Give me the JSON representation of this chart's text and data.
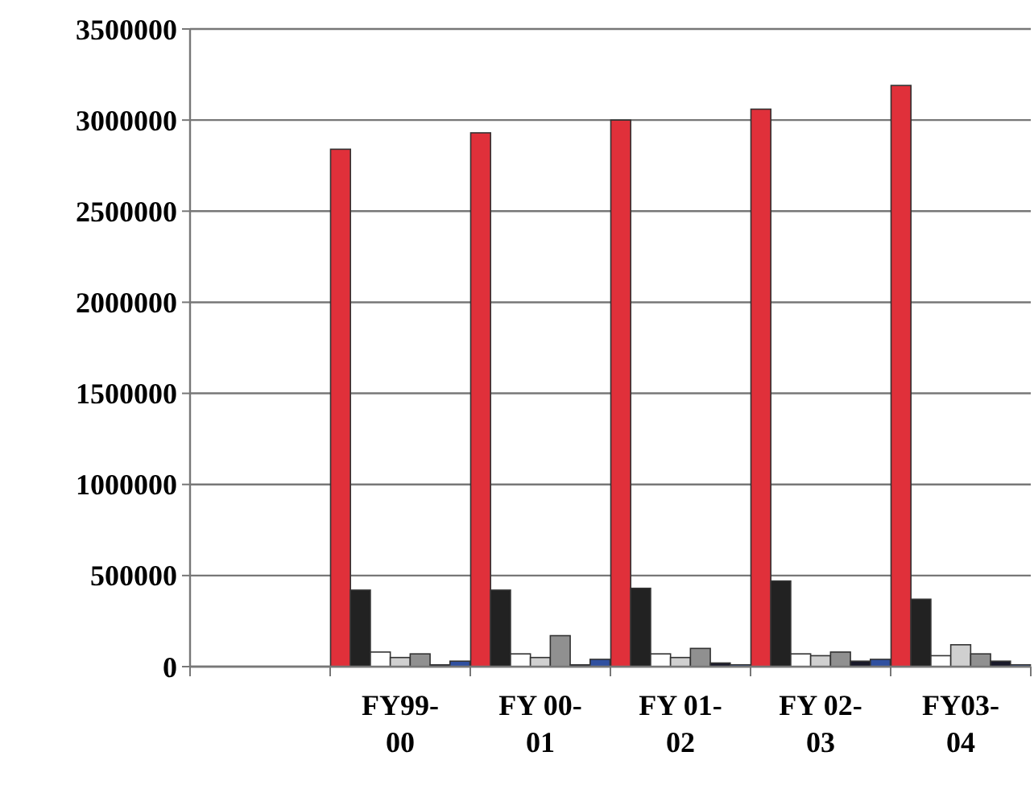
{
  "chart_data": {
    "type": "bar",
    "categories": [
      null,
      "FY99-00",
      "FY 00-01",
      "FY 01-02",
      "FY 02-03",
      "FY03-04"
    ],
    "series": [
      {
        "color": "#e0303a",
        "values": [
          null,
          2840000,
          2930000,
          3000000,
          3060000,
          3190000
        ]
      },
      {
        "color": "#222222",
        "values": [
          null,
          420000,
          420000,
          430000,
          470000,
          370000
        ]
      },
      {
        "color": "#ffffff",
        "values": [
          null,
          80000,
          70000,
          70000,
          70000,
          60000
        ]
      },
      {
        "color": "#d0d0d0",
        "values": [
          null,
          50000,
          50000,
          50000,
          60000,
          120000
        ]
      },
      {
        "color": "#909090",
        "values": [
          null,
          70000,
          170000,
          100000,
          80000,
          70000
        ]
      },
      {
        "color": "#1a1a2a",
        "values": [
          null,
          10000,
          10000,
          20000,
          30000,
          30000
        ]
      },
      {
        "color": "#3050a0",
        "values": [
          null,
          30000,
          40000,
          10000,
          40000,
          10000
        ]
      }
    ],
    "ylim": [
      0,
      3500000
    ],
    "yticks": [
      0,
      500000,
      1000000,
      1500000,
      2000000,
      2500000,
      3000000,
      3500000
    ],
    "grid": "y"
  }
}
